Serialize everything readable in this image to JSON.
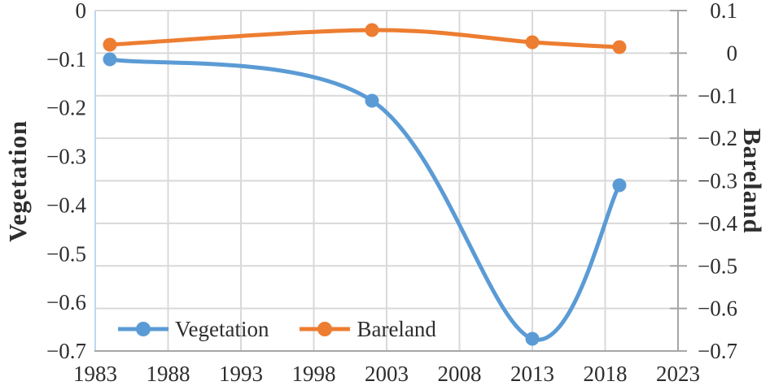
{
  "chart_data": {
    "type": "line",
    "title": "",
    "x_axis": {
      "min": 1983,
      "max": 2023,
      "tick_values": [
        1983,
        1988,
        1993,
        1998,
        2003,
        2008,
        2013,
        2018,
        2023
      ],
      "tick_labels": [
        "1983",
        "1988",
        "1993",
        "1998",
        "2003",
        "2008",
        "2013",
        "2018",
        "2023"
      ]
    },
    "left_axis": {
      "title": "Vegetation",
      "min": -0.7,
      "max": 0,
      "tick_values": [
        0,
        -0.1,
        -0.2,
        -0.3,
        -0.4,
        -0.5,
        -0.6,
        -0.7
      ],
      "tick_labels": [
        "0",
        "−0.1",
        "−0.2",
        "−0.3",
        "−0.4",
        "−0.5",
        "−0.6",
        "−0.7"
      ]
    },
    "right_axis": {
      "title": "Bareland",
      "min": -0.7,
      "max": 0.1,
      "tick_values": [
        0.1,
        0,
        -0.1,
        -0.2,
        -0.3,
        -0.4,
        -0.5,
        -0.6,
        -0.7
      ],
      "tick_labels": [
        "0.1",
        "0",
        "−0.1",
        "−0.2",
        "−0.3",
        "−0.4",
        "−0.5",
        "−0.6",
        "−0.7"
      ]
    },
    "series": [
      {
        "name": "Vegetation",
        "axis": "left",
        "color": "#5B9BD5",
        "smooth": true,
        "x": [
          1984,
          2002,
          2013,
          2019
        ],
        "y": [
          -0.1,
          -0.185,
          -0.675,
          -0.36
        ]
      },
      {
        "name": "Bareland",
        "axis": "right",
        "color": "#ED7D31",
        "smooth": true,
        "x": [
          1984,
          2002,
          2013,
          2019
        ],
        "y": [
          0.02,
          0.055,
          0.025,
          0.015
        ]
      }
    ],
    "legend": {
      "position": "inside-bottom-left",
      "entries": [
        "Vegetation",
        "Bareland"
      ]
    },
    "grid": {
      "horizontal_follows": "right-axis",
      "vertical_follows": "x-axis",
      "gridline_color": "#D9D9D9",
      "axis_line_color": "#A6A6A6",
      "left_border_color": "#BDD7EE",
      "text_color": "#2e2e2e"
    }
  }
}
